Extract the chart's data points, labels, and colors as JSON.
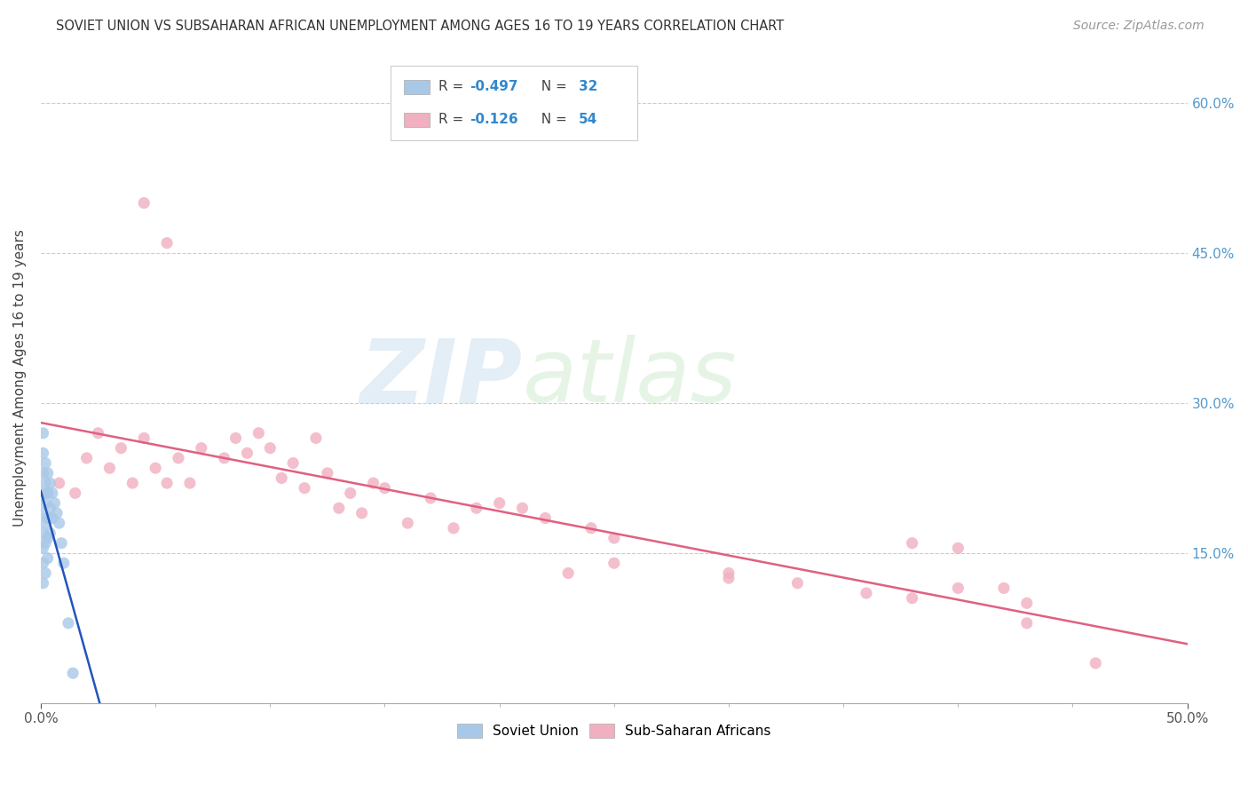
{
  "title": "SOVIET UNION VS SUBSAHARAN AFRICAN UNEMPLOYMENT AMONG AGES 16 TO 19 YEARS CORRELATION CHART",
  "source": "Source: ZipAtlas.com",
  "ylabel": "Unemployment Among Ages 16 to 19 years",
  "xlim": [
    0.0,
    0.5
  ],
  "ylim": [
    0.0,
    0.65
  ],
  "xtick_positions": [
    0.0,
    0.5
  ],
  "xticklabels": [
    "0.0%",
    "50.0%"
  ],
  "ytick_positions": [
    0.15,
    0.3,
    0.45,
    0.6
  ],
  "yticklabels_right": [
    "15.0%",
    "30.0%",
    "45.0%",
    "60.0%"
  ],
  "grid_color": "#cccccc",
  "background_color": "#ffffff",
  "legend_r1": "-0.497",
  "legend_n1": "32",
  "legend_r2": "-0.126",
  "legend_n2": "54",
  "soviet_color": "#a8c8e8",
  "subsaharan_color": "#f0b0c0",
  "soviet_line_color": "#2255bb",
  "subsaharan_line_color": "#e06080",
  "soviet_x": [
    0.001,
    0.001,
    0.001,
    0.001,
    0.001,
    0.001,
    0.001,
    0.001,
    0.001,
    0.002,
    0.002,
    0.002,
    0.002,
    0.002,
    0.002,
    0.003,
    0.003,
    0.003,
    0.003,
    0.003,
    0.004,
    0.004,
    0.004,
    0.005,
    0.005,
    0.006,
    0.007,
    0.008,
    0.009,
    0.01,
    0.012,
    0.014
  ],
  "soviet_y": [
    0.27,
    0.25,
    0.23,
    0.21,
    0.19,
    0.17,
    0.155,
    0.14,
    0.12,
    0.24,
    0.22,
    0.2,
    0.18,
    0.16,
    0.13,
    0.23,
    0.21,
    0.185,
    0.165,
    0.145,
    0.22,
    0.195,
    0.17,
    0.21,
    0.185,
    0.2,
    0.19,
    0.18,
    0.16,
    0.14,
    0.08,
    0.03
  ],
  "subsaharan_x": [
    0.003,
    0.008,
    0.015,
    0.02,
    0.025,
    0.03,
    0.035,
    0.04,
    0.045,
    0.05,
    0.055,
    0.06,
    0.065,
    0.07,
    0.08,
    0.085,
    0.09,
    0.095,
    0.1,
    0.105,
    0.11,
    0.115,
    0.12,
    0.125,
    0.13,
    0.135,
    0.14,
    0.145,
    0.15,
    0.16,
    0.17,
    0.18,
    0.19,
    0.2,
    0.21,
    0.22,
    0.23,
    0.24,
    0.25,
    0.3,
    0.33,
    0.36,
    0.4,
    0.42,
    0.43,
    0.045,
    0.055,
    0.38,
    0.4,
    0.43,
    0.25,
    0.3,
    0.38,
    0.46
  ],
  "subsaharan_y": [
    0.21,
    0.22,
    0.21,
    0.245,
    0.27,
    0.235,
    0.255,
    0.22,
    0.265,
    0.235,
    0.22,
    0.245,
    0.22,
    0.255,
    0.245,
    0.265,
    0.25,
    0.27,
    0.255,
    0.225,
    0.24,
    0.215,
    0.265,
    0.23,
    0.195,
    0.21,
    0.19,
    0.22,
    0.215,
    0.18,
    0.205,
    0.175,
    0.195,
    0.2,
    0.195,
    0.185,
    0.13,
    0.175,
    0.14,
    0.13,
    0.12,
    0.11,
    0.155,
    0.115,
    0.1,
    0.5,
    0.46,
    0.16,
    0.115,
    0.08,
    0.165,
    0.125,
    0.105,
    0.04
  ],
  "title_fontsize": 10.5,
  "label_fontsize": 11,
  "tick_fontsize": 11,
  "source_fontsize": 10,
  "marker_size": 90
}
